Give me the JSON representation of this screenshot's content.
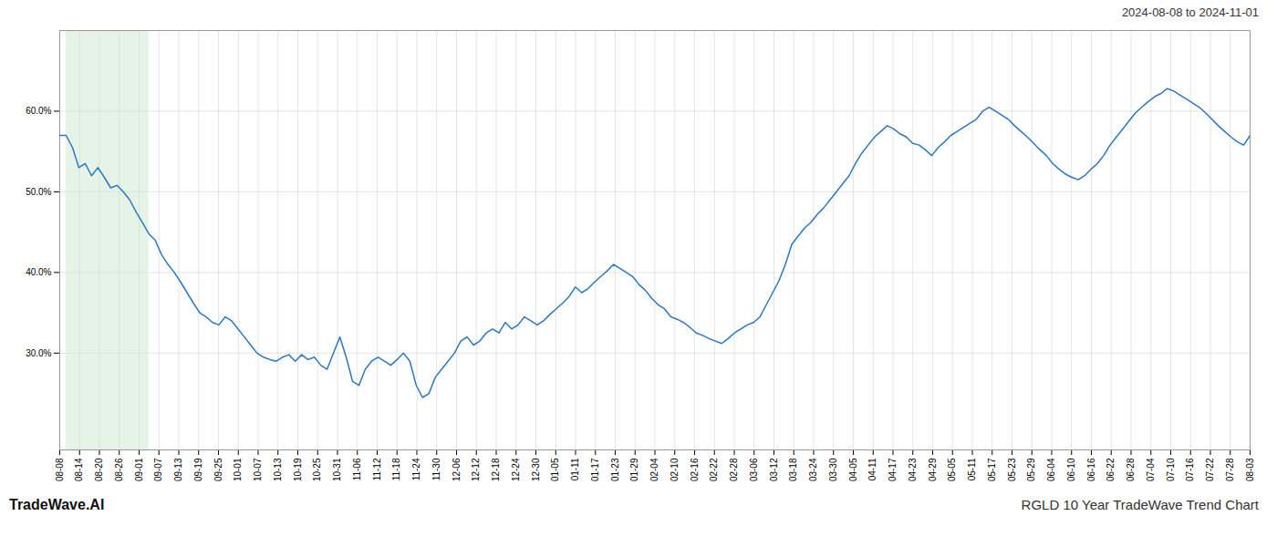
{
  "chart_data": {
    "type": "line",
    "title": "2024-08-08 to 2024-11-01",
    "annotations": [
      "TradeWave.AI",
      "RGLD 10 Year TradeWave Trend Chart"
    ],
    "color": "#2878c8",
    "grid": true,
    "highlight": {
      "start": 1,
      "end": 14,
      "color": "#c8e6c9"
    },
    "xlim": [
      0,
      187
    ],
    "xticks": [
      {
        "value": 0,
        "label": "08-08"
      },
      {
        "value": 3.1167,
        "label": "08-14"
      },
      {
        "value": 6.2333,
        "label": "08-20"
      },
      {
        "value": 9.35,
        "label": "08-26"
      },
      {
        "value": 12.4667,
        "label": "09-01"
      },
      {
        "value": 15.5833,
        "label": "09-07"
      },
      {
        "value": 18.7,
        "label": "09-13"
      },
      {
        "value": 21.8167,
        "label": "09-19"
      },
      {
        "value": 24.9333,
        "label": "09-25"
      },
      {
        "value": 28.05,
        "label": "10-01"
      },
      {
        "value": 31.1667,
        "label": "10-07"
      },
      {
        "value": 34.2833,
        "label": "10-13"
      },
      {
        "value": 37.4,
        "label": "10-19"
      },
      {
        "value": 40.5167,
        "label": "10-25"
      },
      {
        "value": 43.6333,
        "label": "10-31"
      },
      {
        "value": 46.75,
        "label": "11-06"
      },
      {
        "value": 49.8667,
        "label": "11-12"
      },
      {
        "value": 52.9833,
        "label": "11-18"
      },
      {
        "value": 56.1,
        "label": "11-24"
      },
      {
        "value": 59.2167,
        "label": "11-30"
      },
      {
        "value": 62.3333,
        "label": "12-06"
      },
      {
        "value": 65.45,
        "label": "12-12"
      },
      {
        "value": 68.5667,
        "label": "12-18"
      },
      {
        "value": 71.6833,
        "label": "12-24"
      },
      {
        "value": 74.8,
        "label": "12-30"
      },
      {
        "value": 77.9167,
        "label": "01-05"
      },
      {
        "value": 81.0333,
        "label": "01-11"
      },
      {
        "value": 84.15,
        "label": "01-17"
      },
      {
        "value": 87.2667,
        "label": "01-23"
      },
      {
        "value": 90.3833,
        "label": "01-29"
      },
      {
        "value": 93.5,
        "label": "02-04"
      },
      {
        "value": 96.6167,
        "label": "02-10"
      },
      {
        "value": 99.7333,
        "label": "02-16"
      },
      {
        "value": 102.85,
        "label": "02-22"
      },
      {
        "value": 105.9667,
        "label": "02-28"
      },
      {
        "value": 109.0833,
        "label": "03-06"
      },
      {
        "value": 112.2,
        "label": "03-12"
      },
      {
        "value": 115.3167,
        "label": "03-18"
      },
      {
        "value": 118.4333,
        "label": "03-24"
      },
      {
        "value": 121.55,
        "label": "03-30"
      },
      {
        "value": 124.6667,
        "label": "04-05"
      },
      {
        "value": 127.7833,
        "label": "04-11"
      },
      {
        "value": 130.9,
        "label": "04-17"
      },
      {
        "value": 134.0167,
        "label": "04-23"
      },
      {
        "value": 137.1333,
        "label": "04-29"
      },
      {
        "value": 140.25,
        "label": "05-05"
      },
      {
        "value": 143.3667,
        "label": "05-11"
      },
      {
        "value": 146.4833,
        "label": "05-17"
      },
      {
        "value": 149.6,
        "label": "05-23"
      },
      {
        "value": 152.7167,
        "label": "05-29"
      },
      {
        "value": 155.8333,
        "label": "06-04"
      },
      {
        "value": 158.95,
        "label": "06-10"
      },
      {
        "value": 162.0667,
        "label": "06-16"
      },
      {
        "value": 165.1833,
        "label": "06-22"
      },
      {
        "value": 168.3,
        "label": "06-28"
      },
      {
        "value": 171.4167,
        "label": "07-04"
      },
      {
        "value": 174.5333,
        "label": "07-10"
      },
      {
        "value": 177.65,
        "label": "07-16"
      },
      {
        "value": 180.7667,
        "label": "07-22"
      },
      {
        "value": 183.8833,
        "label": "07-28"
      },
      {
        "value": 187,
        "label": "08-03"
      }
    ],
    "ylim": [
      0.18,
      0.7
    ],
    "yticks": [
      {
        "value": 0.3,
        "label": "30.0%"
      },
      {
        "value": 0.4,
        "label": "40.0%"
      },
      {
        "value": 0.5,
        "label": "50.0%"
      },
      {
        "value": 0.6,
        "label": "60.0%"
      }
    ],
    "values": [
      0.57,
      0.57,
      0.555,
      0.53,
      0.535,
      0.52,
      0.53,
      0.518,
      0.505,
      0.508,
      0.5,
      0.49,
      0.475,
      0.462,
      0.448,
      0.44,
      0.422,
      0.41,
      0.4,
      0.388,
      0.375,
      0.362,
      0.35,
      0.345,
      0.338,
      0.335,
      0.345,
      0.34,
      0.33,
      0.32,
      0.31,
      0.3,
      0.295,
      0.292,
      0.29,
      0.295,
      0.298,
      0.29,
      0.298,
      0.292,
      0.295,
      0.285,
      0.28,
      0.3,
      0.32,
      0.295,
      0.265,
      0.26,
      0.28,
      0.29,
      0.295,
      0.29,
      0.285,
      0.292,
      0.3,
      0.29,
      0.26,
      0.245,
      0.25,
      0.27,
      0.28,
      0.29,
      0.3,
      0.315,
      0.32,
      0.31,
      0.315,
      0.325,
      0.33,
      0.325,
      0.338,
      0.33,
      0.335,
      0.345,
      0.34,
      0.335,
      0.34,
      0.348,
      0.355,
      0.362,
      0.37,
      0.382,
      0.375,
      0.38,
      0.388,
      0.395,
      0.402,
      0.41,
      0.405,
      0.4,
      0.395,
      0.385,
      0.378,
      0.368,
      0.36,
      0.355,
      0.345,
      0.342,
      0.338,
      0.332,
      0.325,
      0.322,
      0.318,
      0.315,
      0.312,
      0.318,
      0.325,
      0.33,
      0.335,
      0.338,
      0.345,
      0.36,
      0.375,
      0.39,
      0.41,
      0.435,
      0.445,
      0.455,
      0.462,
      0.472,
      0.48,
      0.49,
      0.5,
      0.51,
      0.52,
      0.535,
      0.548,
      0.558,
      0.568,
      0.575,
      0.582,
      0.578,
      0.572,
      0.568,
      0.56,
      0.558,
      0.552,
      0.545,
      0.555,
      0.562,
      0.57,
      0.575,
      0.58,
      0.585,
      0.59,
      0.6,
      0.605,
      0.6,
      0.595,
      0.59,
      0.582,
      0.575,
      0.568,
      0.56,
      0.552,
      0.545,
      0.535,
      0.528,
      0.522,
      0.518,
      0.515,
      0.52,
      0.528,
      0.535,
      0.545,
      0.558,
      0.568,
      0.578,
      0.588,
      0.598,
      0.605,
      0.612,
      0.618,
      0.622,
      0.628,
      0.625,
      0.62,
      0.615,
      0.61,
      0.605,
      0.598,
      0.59,
      0.582,
      0.575,
      0.568,
      0.562,
      0.558,
      0.57
    ]
  }
}
